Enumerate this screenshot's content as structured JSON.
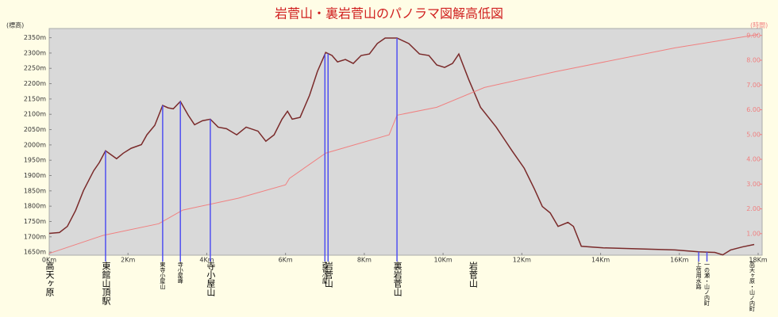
{
  "chart_data": {
    "type": "line",
    "title": "岩菅山・裏岩菅山のパノラマ図解高低図",
    "ylabel": "(標高)",
    "y2label": "(時間)",
    "xlim": [
      0,
      18
    ],
    "ylim": [
      1640,
      2380
    ],
    "y2lim": [
      0.13,
      9.28
    ],
    "xticks": [
      {
        "value": 0,
        "label": "0Km"
      },
      {
        "value": 2,
        "label": "2Km"
      },
      {
        "value": 4,
        "label": "4Km"
      },
      {
        "value": 6,
        "label": "6Km"
      },
      {
        "value": 8,
        "label": "8Km"
      },
      {
        "value": 10,
        "label": "10Km"
      },
      {
        "value": 12,
        "label": "12Km"
      },
      {
        "value": 14,
        "label": "14Km"
      },
      {
        "value": 16,
        "label": "16Km"
      },
      {
        "value": 18,
        "label": "18Km"
      }
    ],
    "yticks": [
      {
        "value": 1650,
        "label": "1650m"
      },
      {
        "value": 1700,
        "label": "1700m"
      },
      {
        "value": 1750,
        "label": "1750m"
      },
      {
        "value": 1800,
        "label": "1800m"
      },
      {
        "value": 1850,
        "label": "1850m"
      },
      {
        "value": 1900,
        "label": "1900m"
      },
      {
        "value": 1950,
        "label": "1950m"
      },
      {
        "value": 2000,
        "label": "2000m"
      },
      {
        "value": 2050,
        "label": "2050m"
      },
      {
        "value": 2100,
        "label": "2100m"
      },
      {
        "value": 2150,
        "label": "2150m"
      },
      {
        "value": 2200,
        "label": "2200m"
      },
      {
        "value": 2250,
        "label": "2250m"
      },
      {
        "value": 2300,
        "label": "2300m"
      },
      {
        "value": 2350,
        "label": "2350m"
      }
    ],
    "y2ticks": [
      {
        "value": 1,
        "label": "1.00"
      },
      {
        "value": 2,
        "label": "2.00"
      },
      {
        "value": 3,
        "label": "3.00"
      },
      {
        "value": 4,
        "label": "4.00"
      },
      {
        "value": 5,
        "label": "5.00"
      },
      {
        "value": 6,
        "label": "6.00"
      },
      {
        "value": 7,
        "label": "7.00"
      },
      {
        "value": 8,
        "label": "8.00"
      },
      {
        "value": 9,
        "label": "9.00"
      }
    ],
    "series": [
      {
        "color": "#7a2a2a",
        "x": [
          0,
          0.26,
          0.46,
          0.67,
          0.87,
          1.13,
          1.27,
          1.43,
          1.57,
          1.71,
          1.88,
          2.08,
          2.34,
          2.48,
          2.68,
          2.88,
          3.02,
          3.15,
          3.33,
          3.53,
          3.69,
          3.89,
          4.09,
          4.29,
          4.5,
          4.76,
          5.0,
          5.3,
          5.5,
          5.71,
          5.91,
          6.05,
          6.17,
          6.37,
          6.61,
          6.81,
          7.02,
          7.18,
          7.32,
          7.52,
          7.72,
          7.92,
          8.13,
          8.33,
          8.53,
          8.83,
          9.13,
          9.4,
          9.64,
          9.84,
          10.04,
          10.24,
          10.4,
          10.65,
          10.95,
          11.35,
          11.75,
          12.06,
          12.32,
          12.52,
          12.72,
          12.92,
          13.17,
          13.31,
          13.51,
          14.07,
          15.89,
          16.49,
          16.9,
          17.1,
          17.3,
          17.6,
          17.9
        ],
        "values": [
          1711,
          1714,
          1734,
          1786,
          1851,
          1916,
          1942,
          1981,
          1968,
          1955,
          1973,
          1989,
          2001,
          2033,
          2064,
          2129,
          2121,
          2118,
          2142,
          2097,
          2066,
          2079,
          2084,
          2058,
          2053,
          2033,
          2058,
          2045,
          2012,
          2033,
          2084,
          2110,
          2084,
          2090,
          2162,
          2240,
          2302,
          2292,
          2271,
          2279,
          2266,
          2292,
          2297,
          2331,
          2349,
          2349,
          2331,
          2297,
          2292,
          2261,
          2253,
          2266,
          2297,
          2214,
          2123,
          2058,
          1981,
          1924,
          1856,
          1799,
          1778,
          1734,
          1747,
          1734,
          1669,
          1664,
          1657,
          1651,
          1649,
          1641,
          1657,
          1667,
          1675
        ]
      },
      {
        "color": "#f08080",
        "axis": "y2",
        "x": [
          0,
          1.37,
          2.78,
          3.39,
          4.8,
          6.0,
          6.1,
          7.02,
          8.63,
          8.83,
          9.84,
          11.05,
          12.86,
          15.89,
          18.0
        ],
        "values": [
          0.2,
          0.93,
          1.4,
          1.95,
          2.43,
          2.97,
          3.23,
          4.25,
          4.99,
          5.78,
          6.1,
          6.9,
          7.54,
          8.5,
          9.04
        ]
      }
    ],
    "markers": [
      {
        "label": "高天ヶ原",
        "x": 0,
        "line": false,
        "small": false
      },
      {
        "label": "東館山頂駅",
        "x": 1.43,
        "line": true,
        "small": false
      },
      {
        "label": "東寺小屋山",
        "x": 2.88,
        "line": true,
        "small": true
      },
      {
        "label": "寺小屋峰",
        "x": 3.33,
        "line": true,
        "small": true
      },
      {
        "label": "寺小屋山",
        "x": 4.09,
        "line": true,
        "small": false
      },
      {
        "label": "岩菅小屋",
        "x": 7.0,
        "line": true,
        "small": true
      },
      {
        "label": "岩菅山",
        "x": 7.08,
        "line": true,
        "small": false
      },
      {
        "label": "裏岩菅山",
        "x": 8.83,
        "line": true,
        "small": false
      },
      {
        "label": "岩菅山",
        "x": 10.75,
        "line": false,
        "small": false
      },
      {
        "label": "上信用水路",
        "x": 16.49,
        "line": true,
        "small": true
      },
      {
        "label": "一の瀬・山ノ内町",
        "x": 16.7,
        "line": true,
        "small": true
      },
      {
        "label": "高天ヶ原・山ノ内町",
        "x": 17.85,
        "line": false,
        "small": true
      }
    ]
  }
}
